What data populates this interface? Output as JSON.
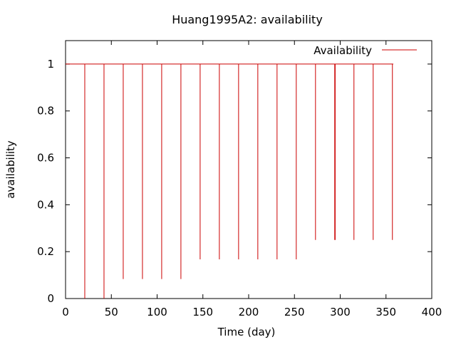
{
  "chart_data": {
    "type": "line",
    "title": "Huang1995A2: availability",
    "xlabel": "Time (day)",
    "ylabel": "availability",
    "xlim": [
      0,
      400
    ],
    "ylim": [
      0,
      1.1
    ],
    "x_ticks": [
      0,
      50,
      100,
      150,
      200,
      250,
      300,
      350,
      400
    ],
    "x_tick_labels": [
      "0",
      "50",
      "100",
      "150",
      "200",
      "250",
      "300",
      "350",
      "400"
    ],
    "y_ticks": [
      0,
      0.2,
      0.4,
      0.6,
      0.8,
      1
    ],
    "y_tick_labels": [
      "0",
      "0.2",
      "0.4",
      "0.6",
      "0.8",
      "1"
    ],
    "grid": false,
    "legend_position": "top-right",
    "series": [
      {
        "name": "Availability",
        "color": "#cc0000",
        "baseline": 1,
        "x_range": [
          0,
          358
        ],
        "dips": [
          {
            "x": 21,
            "y": 0
          },
          {
            "x": 42,
            "y": 0
          },
          {
            "x": 63,
            "y": 0.083
          },
          {
            "x": 84,
            "y": 0.083
          },
          {
            "x": 105,
            "y": 0.083
          },
          {
            "x": 126,
            "y": 0.083
          },
          {
            "x": 147,
            "y": 0.167
          },
          {
            "x": 168,
            "y": 0.167
          },
          {
            "x": 189,
            "y": 0.167
          },
          {
            "x": 210,
            "y": 0.167
          },
          {
            "x": 231,
            "y": 0.167
          },
          {
            "x": 252,
            "y": 0.167
          },
          {
            "x": 273,
            "y": 0.25
          },
          {
            "x": 294,
            "y": 0.25
          },
          {
            "x": 294.5,
            "y": 0.25
          },
          {
            "x": 315,
            "y": 0.25
          },
          {
            "x": 336,
            "y": 0.25
          },
          {
            "x": 357,
            "y": 0.25
          }
        ]
      }
    ]
  }
}
